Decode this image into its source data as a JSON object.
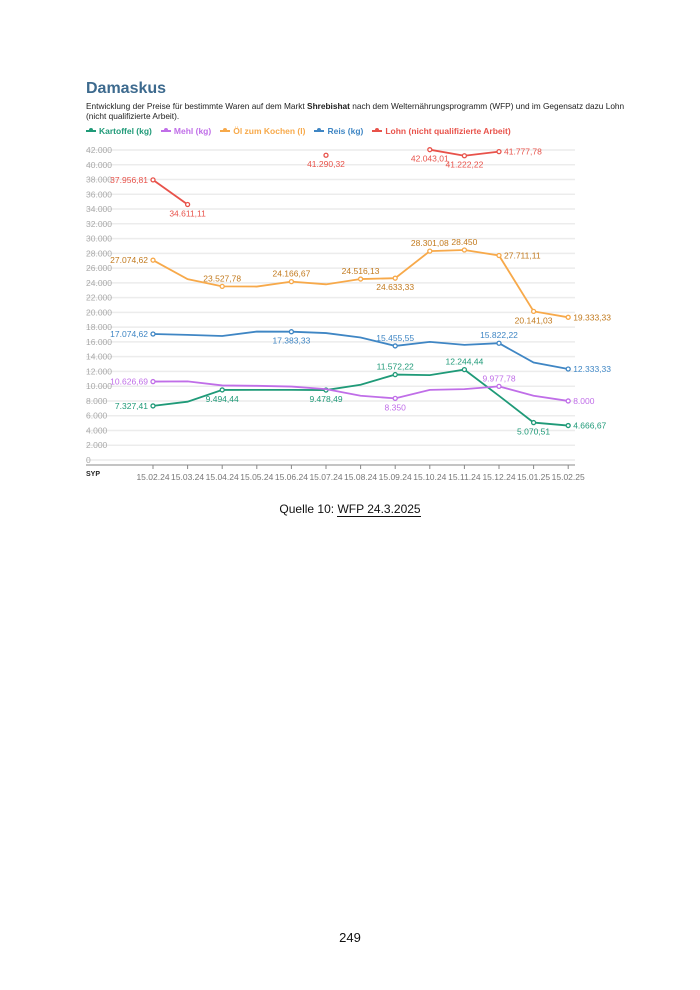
{
  "title": "Damaskus",
  "description": {
    "pre": "Entwicklung der Preise für bestimmte Waren auf dem Markt ",
    "bold": "Shrebishat",
    "post": " nach dem Welternährungsprogramm (WFP) und im Gegensatz dazu Lohn (nicht qualifizierte Arbeit)."
  },
  "caption": {
    "prefix": "Quelle 10: ",
    "link": "WFP 24.3.2025"
  },
  "page_number": "249",
  "chart_data": {
    "type": "line",
    "unit_label": "SYP",
    "ylim": [
      0,
      42000
    ],
    "yticks": [
      "0",
      "2.000",
      "4.000",
      "6.000",
      "8.000",
      "10.000",
      "12.000",
      "14.000",
      "16.000",
      "18.000",
      "20.000",
      "22.000",
      "24.000",
      "26.000",
      "28.000",
      "30.000",
      "32.000",
      "34.000",
      "36.000",
      "38.000",
      "40.000",
      "42.000"
    ],
    "ytick_values": [
      0,
      2000,
      4000,
      6000,
      8000,
      10000,
      12000,
      14000,
      16000,
      18000,
      20000,
      22000,
      24000,
      26000,
      28000,
      30000,
      32000,
      34000,
      36000,
      38000,
      40000,
      42000
    ],
    "categories": [
      "15.02.24",
      "15.03.24",
      "15.04.24",
      "15.05.24",
      "15.06.24",
      "15.07.24",
      "15.08.24",
      "15.09.24",
      "15.10.24",
      "15.11.24",
      "15.12.24",
      "15.01.25",
      "15.02.25"
    ],
    "grid": true,
    "legend_position": "top-left",
    "series": [
      {
        "name": "Kartoffel (kg)",
        "color": "#1f9a78",
        "values": [
          7327.41,
          7900,
          9494.44,
          9500,
          9500,
          9478.49,
          10200,
          11572.22,
          11500,
          12244.44,
          8700,
          5070.51,
          4666.67
        ],
        "labels": [
          "7.327,41",
          null,
          "9.494,44",
          null,
          null,
          "9.478,49",
          null,
          "11.572,22",
          null,
          "12.244,44",
          null,
          "5.070,51",
          "4.666,67"
        ]
      },
      {
        "name": "Mehl (kg)",
        "color": "#c06ee8",
        "values": [
          10626.69,
          10650,
          10100,
          10050,
          9950,
          9600,
          8700,
          8350,
          9500,
          9600,
          9977.78,
          8700,
          8000
        ],
        "labels": [
          "10.626,69",
          null,
          null,
          null,
          null,
          null,
          null,
          "8.350",
          null,
          null,
          "9.977,78",
          null,
          "8.000"
        ]
      },
      {
        "name": "Öl zum Kochen (l)",
        "color": "#f7a94a",
        "values": [
          27074.62,
          24500,
          23527.78,
          23500,
          24166.67,
          23800,
          24516.13,
          24633.33,
          28301.08,
          28450,
          27711.11,
          20141.03,
          19333.33
        ],
        "labels": [
          "27.074,62",
          null,
          "23.527,78",
          null,
          "24.166,67",
          null,
          "24.516,13",
          "24.633,33",
          "28.301,08",
          "28.450",
          "27.711,11",
          "20.141,03",
          "19.333,33"
        ]
      },
      {
        "name": "Reis (kg)",
        "color": "#3f86c4",
        "values": [
          17074.62,
          16950,
          16800,
          17400,
          17383.33,
          17200,
          16600,
          15455.55,
          16000,
          15600,
          15822.22,
          13200,
          12333.33
        ],
        "labels": [
          "17.074,62",
          null,
          null,
          null,
          "17.383,33",
          null,
          null,
          "15.455,55",
          null,
          null,
          "15.822,22",
          null,
          "12.333,33"
        ]
      },
      {
        "name": "Lohn (nicht qualifizierte Arbeit)",
        "color": "#e8524a",
        "values": [
          37956.81,
          34611.11,
          null,
          null,
          null,
          41290.32,
          null,
          null,
          42043.01,
          41222.22,
          41777.78,
          null,
          null
        ],
        "labels": [
          "37.956,81",
          "34.611,11",
          null,
          null,
          null,
          "41.290,32",
          null,
          null,
          "42.043,01",
          "41.222,22",
          "41.777,78",
          null,
          null
        ]
      }
    ]
  }
}
